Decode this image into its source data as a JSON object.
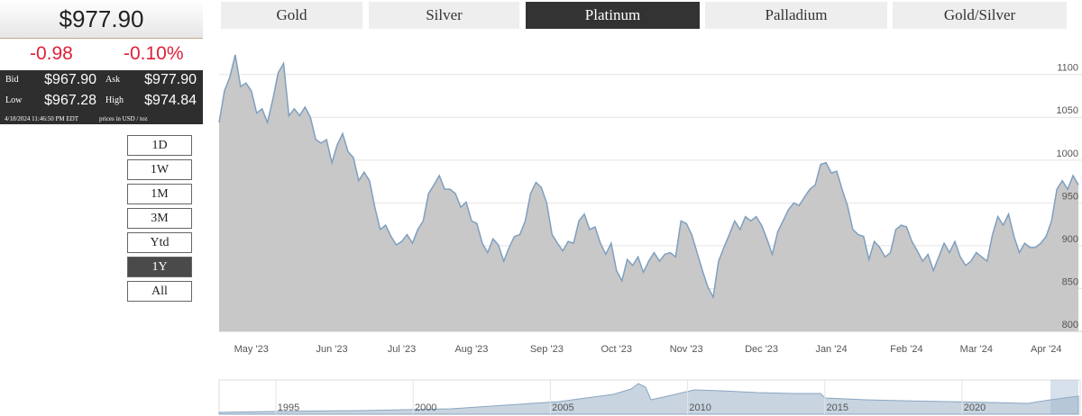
{
  "quote": {
    "price": "$977.90",
    "change": "-0.98",
    "change_percent": "-0.10%",
    "bid_label": "Bid",
    "bid": "$967.90",
    "ask_label": "Ask",
    "ask": "$977.90",
    "low_label": "Low",
    "low": "$967.28",
    "high_label": "High",
    "high": "$974.84",
    "timestamp": "4/18/2024 11:46:50 PM EDT",
    "units": "prices in USD / toz"
  },
  "tabs": {
    "items": [
      "Gold",
      "Silver",
      "Platinum",
      "Palladium",
      "Gold/Silver"
    ],
    "active": 2
  },
  "ranges": {
    "items": [
      "1D",
      "1W",
      "1M",
      "3M",
      "Ytd",
      "1Y",
      "All"
    ],
    "active": 5
  },
  "chart_data": {
    "type": "area",
    "color": "#c8c8c8",
    "line_color": "#7f9fbf",
    "grid": true,
    "categories": [
      null,
      null,
      null,
      null,
      null,
      null,
      "May '23",
      null,
      null,
      null,
      null,
      null,
      null,
      null,
      null,
      null,
      null,
      null,
      null,
      null,
      null,
      "Jun '23",
      null,
      null,
      null,
      null,
      null,
      null,
      null,
      null,
      null,
      null,
      null,
      null,
      "Jul '23",
      null,
      null,
      null,
      null,
      null,
      null,
      null,
      null,
      null,
      null,
      null,
      null,
      "Aug '23",
      null,
      null,
      null,
      null,
      null,
      null,
      null,
      null,
      null,
      null,
      null,
      null,
      null,
      "Sep '23",
      null,
      null,
      null,
      null,
      null,
      null,
      null,
      null,
      null,
      null,
      null,
      null,
      "Oct '23",
      null,
      null,
      null,
      null,
      null,
      null,
      null,
      null,
      null,
      null,
      null,
      null,
      "Nov '23",
      null,
      null,
      null,
      null,
      null,
      null,
      null,
      null,
      null,
      null,
      null,
      null,
      null,
      "Dec '23",
      null,
      null,
      null,
      null,
      null,
      null,
      null,
      null,
      null,
      null,
      null,
      null,
      "Jan '24",
      null,
      null,
      null,
      null,
      null,
      null,
      null,
      null,
      null,
      null,
      null,
      null,
      null,
      "Feb '24",
      null,
      null,
      null,
      null,
      null,
      null,
      null,
      null,
      null,
      null,
      null,
      null,
      "Mar '24",
      null,
      null,
      null,
      null,
      null,
      null,
      null,
      null,
      null,
      null,
      null,
      null,
      "Apr '24",
      null,
      null,
      null,
      null,
      null,
      null
    ],
    "values": [
      1044,
      1081,
      1097,
      1123,
      1086,
      1090,
      1081,
      1055,
      1060,
      1044,
      1071,
      1102,
      1113,
      1052,
      1060,
      1052,
      1062,
      1050,
      1024,
      1020,
      1024,
      997,
      1018,
      1031,
      1010,
      1003,
      976,
      986,
      976,
      945,
      919,
      924,
      911,
      901,
      905,
      913,
      903,
      919,
      929,
      961,
      971,
      982,
      966,
      966,
      961,
      945,
      951,
      929,
      926,
      903,
      892,
      908,
      901,
      882,
      898,
      911,
      913,
      929,
      961,
      974,
      968,
      950,
      913,
      903,
      894,
      905,
      903,
      929,
      937,
      919,
      922,
      903,
      890,
      903,
      871,
      859,
      884,
      877,
      887,
      869,
      882,
      892,
      882,
      890,
      892,
      887,
      929,
      926,
      913,
      892,
      871,
      852,
      840,
      882,
      898,
      913,
      929,
      919,
      934,
      929,
      934,
      924,
      908,
      890,
      916,
      929,
      942,
      950,
      947,
      957,
      966,
      971,
      995,
      997,
      985,
      987,
      966,
      947,
      919,
      913,
      911,
      884,
      905,
      898,
      887,
      892,
      919,
      924,
      922,
      905,
      894,
      882,
      890,
      871,
      887,
      903,
      892,
      905,
      887,
      877,
      882,
      892,
      887,
      882,
      913,
      934,
      924,
      937,
      911,
      892,
      903,
      898,
      898,
      903,
      911,
      929,
      966,
      976,
      966,
      982,
      971
    ],
    "ylim": [
      800,
      1145
    ],
    "yticks": [
      800,
      850,
      900,
      950,
      1000,
      1050,
      1100
    ]
  },
  "navigator": {
    "labels": [
      "1995",
      "2000",
      "2005",
      "2010",
      "2015",
      "2020"
    ]
  }
}
